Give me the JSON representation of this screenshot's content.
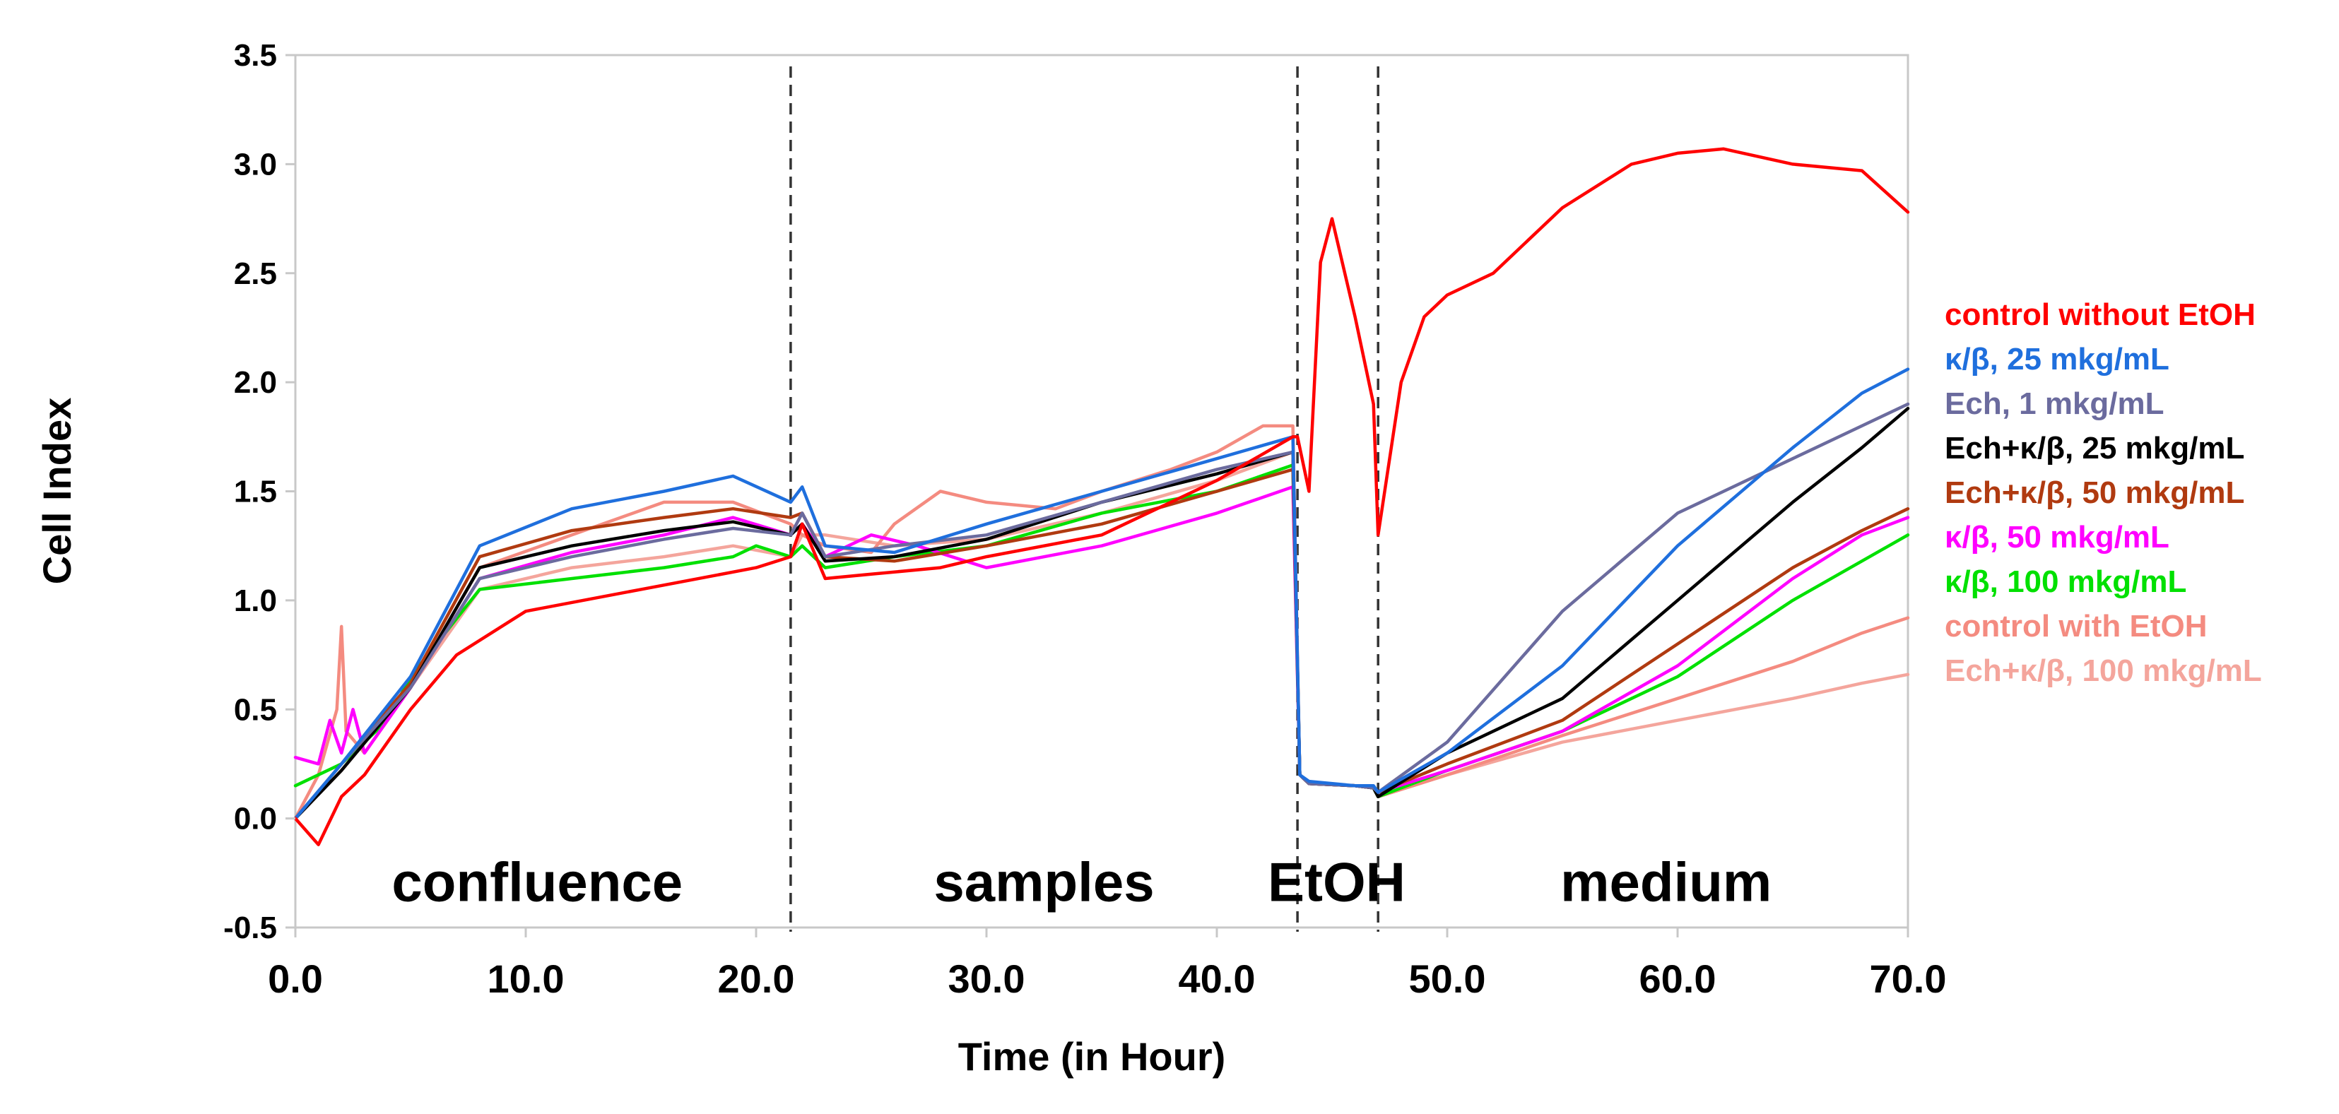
{
  "chart_data": {
    "type": "line",
    "title": "",
    "xlabel": "Time (in Hour)",
    "ylabel": "Cell Index",
    "xlim": [
      0,
      70
    ],
    "ylim": [
      -0.5,
      3.5
    ],
    "x_ticks": [
      0,
      10,
      20,
      30,
      40,
      50,
      60,
      70
    ],
    "x_tick_labels": [
      "0.0",
      "10.0",
      "20.0",
      "30.0",
      "40.0",
      "50.0",
      "60.0",
      "70.0"
    ],
    "y_ticks": [
      -0.5,
      0,
      0.5,
      1,
      1.5,
      2,
      2.5,
      3,
      3.5
    ],
    "y_tick_labels": [
      "-0.5",
      "0.0",
      "0.5",
      "1.0",
      "1.5",
      "2.0",
      "2.5",
      "3.0",
      "3.5"
    ],
    "grid": false,
    "legend_position": "right",
    "phase_lines": [
      21.5,
      43.5,
      47
    ],
    "phase_labels": [
      {
        "text": "confluence",
        "x": 10.5,
        "y": -0.3
      },
      {
        "text": "samples",
        "x": 32.5,
        "y": -0.3
      },
      {
        "text": "EtOH",
        "x": 45.2,
        "y": -0.3
      },
      {
        "text": "medium",
        "x": 59.5,
        "y": -0.3
      }
    ],
    "series": [
      {
        "name": "control without EtOH",
        "color": "#ff0000",
        "x": [
          0,
          1,
          2,
          3,
          5,
          7,
          10,
          15,
          20,
          21.5,
          22,
          23,
          25,
          28,
          30,
          35,
          40,
          43.3,
          43.5,
          44,
          44.5,
          45,
          46,
          46.8,
          47,
          48,
          49,
          50,
          52,
          55,
          58,
          60,
          62,
          65,
          68,
          70
        ],
        "y": [
          0,
          -0.12,
          0.1,
          0.2,
          0.5,
          0.75,
          0.95,
          1.05,
          1.15,
          1.2,
          1.35,
          1.1,
          1.12,
          1.15,
          1.2,
          1.3,
          1.55,
          1.75,
          1.75,
          1.5,
          2.55,
          2.75,
          2.3,
          1.9,
          1.3,
          2.0,
          2.3,
          2.4,
          2.5,
          2.8,
          3.0,
          3.05,
          3.07,
          3.0,
          2.97,
          2.78
        ]
      },
      {
        "name": "κ/β, 25 mkg/mL",
        "color": "#1f6fdd",
        "x": [
          0,
          2,
          5,
          8,
          12,
          16,
          19,
          21.5,
          22,
          23,
          26,
          30,
          35,
          40,
          43.3,
          43.6,
          44,
          46,
          46.8,
          47,
          50,
          55,
          60,
          65,
          68,
          70
        ],
        "y": [
          0,
          0.25,
          0.65,
          1.25,
          1.42,
          1.5,
          1.57,
          1.45,
          1.52,
          1.25,
          1.22,
          1.35,
          1.5,
          1.65,
          1.75,
          0.2,
          0.17,
          0.15,
          0.15,
          0.12,
          0.3,
          0.7,
          1.25,
          1.7,
          1.95,
          2.06
        ]
      },
      {
        "name": "Ech, 1 mkg/mL",
        "color": "#6b6b9e",
        "x": [
          0,
          2,
          5,
          8,
          12,
          16,
          19,
          21.5,
          22,
          23,
          26,
          30,
          35,
          40,
          43.3,
          43.6,
          44,
          46,
          46.8,
          47,
          50,
          55,
          60,
          65,
          68,
          70
        ],
        "y": [
          0,
          0.25,
          0.6,
          1.1,
          1.2,
          1.28,
          1.33,
          1.3,
          1.4,
          1.2,
          1.25,
          1.3,
          1.45,
          1.6,
          1.68,
          0.2,
          0.16,
          0.15,
          0.14,
          0.12,
          0.35,
          0.95,
          1.4,
          1.65,
          1.8,
          1.9
        ]
      },
      {
        "name": "Ech+κ/β, 25 mkg/mL",
        "color": "#000000",
        "x": [
          0,
          2,
          5,
          8,
          12,
          16,
          19,
          21.5,
          22,
          23,
          26,
          30,
          35,
          40,
          43.3,
          43.6,
          44,
          46,
          46.8,
          47,
          50,
          55,
          60,
          65,
          68,
          70
        ],
        "y": [
          0,
          0.22,
          0.6,
          1.15,
          1.25,
          1.32,
          1.36,
          1.3,
          1.35,
          1.18,
          1.2,
          1.28,
          1.45,
          1.58,
          1.68,
          0.2,
          0.16,
          0.15,
          0.14,
          0.1,
          0.3,
          0.55,
          1.0,
          1.45,
          1.7,
          1.88
        ]
      },
      {
        "name": "Ech+κ/β, 50 mkg/mL",
        "color": "#b03a10",
        "x": [
          0,
          2,
          5,
          8,
          12,
          16,
          19,
          21.5,
          22,
          23,
          26,
          30,
          35,
          40,
          43.3,
          43.6,
          44,
          46,
          46.8,
          47,
          50,
          55,
          60,
          65,
          68,
          70
        ],
        "y": [
          0,
          0.25,
          0.62,
          1.2,
          1.32,
          1.38,
          1.42,
          1.38,
          1.4,
          1.2,
          1.18,
          1.25,
          1.35,
          1.5,
          1.6,
          0.2,
          0.16,
          0.15,
          0.14,
          0.12,
          0.25,
          0.45,
          0.8,
          1.15,
          1.32,
          1.42
        ]
      },
      {
        "name": "κ/β, 50 mkg/mL",
        "color": "#ff00ff",
        "x": [
          0,
          1,
          1.5,
          2,
          2.5,
          3,
          5,
          8,
          12,
          16,
          19,
          21.5,
          22,
          23,
          25,
          27,
          30,
          35,
          40,
          43.3,
          43.6,
          44,
          46,
          46.8,
          47,
          50,
          55,
          60,
          65,
          68,
          70
        ],
        "y": [
          0.28,
          0.25,
          0.45,
          0.3,
          0.5,
          0.3,
          0.6,
          1.1,
          1.22,
          1.3,
          1.38,
          1.3,
          1.35,
          1.2,
          1.3,
          1.25,
          1.15,
          1.25,
          1.4,
          1.52,
          0.2,
          0.16,
          0.15,
          0.14,
          0.12,
          0.22,
          0.4,
          0.7,
          1.1,
          1.3,
          1.38
        ]
      },
      {
        "name": "κ/β, 100 mkg/mL",
        "color": "#00e000",
        "x": [
          0,
          2,
          4,
          5,
          8,
          12,
          16,
          19,
          20,
          21.5,
          22,
          23,
          26,
          30,
          35,
          40,
          43.3,
          43.6,
          44,
          46,
          46.8,
          47,
          50,
          55,
          60,
          65,
          68,
          70
        ],
        "y": [
          0.15,
          0.25,
          0.45,
          0.65,
          1.05,
          1.1,
          1.15,
          1.2,
          1.25,
          1.2,
          1.25,
          1.15,
          1.2,
          1.25,
          1.4,
          1.5,
          1.62,
          0.2,
          0.16,
          0.15,
          0.14,
          0.1,
          0.22,
          0.4,
          0.65,
          1.0,
          1.18,
          1.3
        ]
      },
      {
        "name": "control with EtOH",
        "color": "#f48b80",
        "x": [
          0,
          1,
          1.8,
          2,
          2.2,
          3,
          5,
          8,
          12,
          16,
          19,
          21.5,
          22,
          23,
          25,
          26,
          28,
          30,
          33,
          35,
          38,
          40,
          42,
          43.3,
          43.6,
          44,
          46,
          46.8,
          47,
          50,
          55,
          60,
          65,
          68,
          70
        ],
        "y": [
          0,
          0.2,
          0.5,
          0.88,
          0.4,
          0.3,
          0.6,
          1.15,
          1.3,
          1.45,
          1.45,
          1.35,
          1.3,
          1.25,
          1.22,
          1.35,
          1.5,
          1.45,
          1.42,
          1.5,
          1.6,
          1.68,
          1.8,
          1.8,
          0.2,
          0.16,
          0.15,
          0.14,
          0.1,
          0.2,
          0.38,
          0.55,
          0.72,
          0.85,
          0.92
        ]
      },
      {
        "name": "Ech+κ/β, 100 mkg/mL",
        "color": "#f4a59c",
        "x": [
          0,
          2,
          5,
          8,
          12,
          16,
          19,
          21.5,
          22,
          23,
          26,
          30,
          35,
          40,
          43.3,
          43.6,
          44,
          46,
          46.8,
          47,
          50,
          55,
          60,
          65,
          68,
          70
        ],
        "y": [
          0,
          0.22,
          0.6,
          1.05,
          1.15,
          1.2,
          1.25,
          1.2,
          1.3,
          1.3,
          1.25,
          1.28,
          1.4,
          1.55,
          1.68,
          0.2,
          0.16,
          0.15,
          0.14,
          0.1,
          0.2,
          0.35,
          0.45,
          0.55,
          0.62,
          0.66
        ]
      }
    ]
  }
}
